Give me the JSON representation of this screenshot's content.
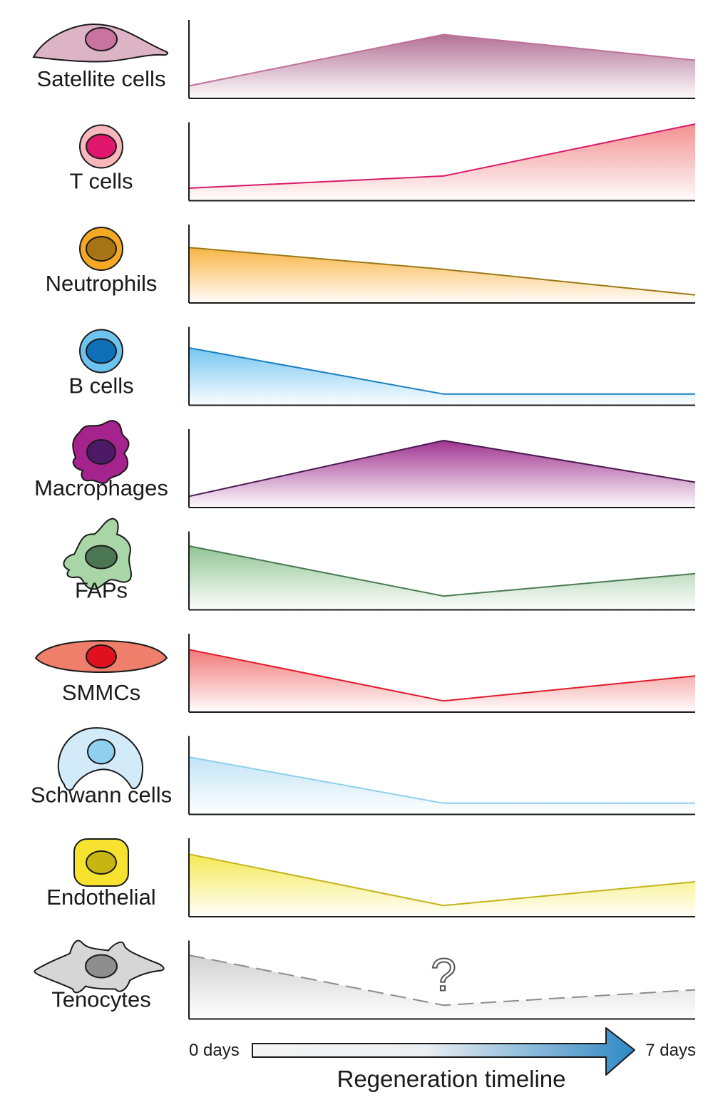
{
  "panels": [
    {
      "label": "Satellite cells",
      "values": [
        0.15,
        0.95,
        0.55
      ],
      "color": "#c06f9a",
      "fill": "#ad6a8f",
      "cell_fill": "#dcb4c5",
      "nucleus_fill": "#c873a0",
      "cell_shape": "spindle-cell-icon",
      "dashed": false
    },
    {
      "label": "T cells",
      "values": [
        0.15,
        0.34,
        1.15
      ],
      "color": "#d81b6a",
      "fill": "#f28a8a",
      "cell_fill": "#f8b7ba",
      "nucleus_fill": "#e0176c",
      "cell_shape": "round-cell-icon",
      "dashed": false
    },
    {
      "label": "Neutrophils",
      "values": [
        0.82,
        0.48,
        0.08
      ],
      "color": "#9a7a18",
      "fill": "#f8b03a",
      "cell_fill": "#f4a823",
      "nucleus_fill": "#a77415",
      "cell_shape": "round-cell-icon",
      "dashed": false
    },
    {
      "label": "B cells",
      "values": [
        0.85,
        0.13,
        0.13
      ],
      "color": "#1b7fc0",
      "fill": "#6ec3ef",
      "cell_fill": "#6ec3ee",
      "nucleus_fill": "#0f6fb8",
      "cell_shape": "round-cell-icon",
      "dashed": false
    },
    {
      "label": "Macrophages",
      "values": [
        0.13,
        1.0,
        0.35
      ],
      "color": "#4a1850",
      "fill": "#9a2a8a",
      "cell_fill": "#a4238d",
      "nucleus_fill": "#4c1a64",
      "cell_shape": "macrophage-icon",
      "dashed": false
    },
    {
      "label": "FAPs",
      "values": [
        0.95,
        0.17,
        0.52
      ],
      "color": "#4a7a52",
      "fill": "#8cc290",
      "cell_fill": "#a9d6a7",
      "nucleus_fill": "#4b7654",
      "cell_shape": "fibroblast-icon",
      "dashed": false
    },
    {
      "label": "SMMCs",
      "values": [
        0.93,
        0.13,
        0.52
      ],
      "color": "#e01a2a",
      "fill": "#f07270",
      "cell_fill": "#ef7e6a",
      "nucleus_fill": "#e0101f",
      "cell_shape": "elongated-cell-icon",
      "dashed": false
    },
    {
      "label": "Schwann cells",
      "values": [
        0.85,
        0.13,
        0.13
      ],
      "color": "#8fcfec",
      "fill": "#bfe3f6",
      "cell_fill": "#d3ebf9",
      "nucleus_fill": "#8fcfef",
      "cell_shape": "crescent-cell-icon",
      "dashed": false
    },
    {
      "label": "Endothelial",
      "values": [
        0.93,
        0.13,
        0.5
      ],
      "color": "#c4b31a",
      "fill": "#f4e84a",
      "cell_fill": "#f6e22f",
      "nucleus_fill": "#c7b512",
      "cell_shape": "rounded-square-cell-icon",
      "dashed": false
    },
    {
      "label": "Tenocytes",
      "values": [
        0.95,
        0.17,
        0.41
      ],
      "color": "#8c8c8c",
      "fill": "#cfcfcf",
      "cell_fill": "#d6d6d6",
      "nucleus_fill": "#8e8e8e",
      "cell_shape": "stellate-cell-icon",
      "dashed": true,
      "annotation": "?"
    }
  ],
  "timeline": {
    "start_label": "0 days",
    "end_label": "7 days",
    "title": "Regeneration timeline",
    "arrow_colors": [
      "#f5f5f5",
      "#2e88c4"
    ]
  }
}
